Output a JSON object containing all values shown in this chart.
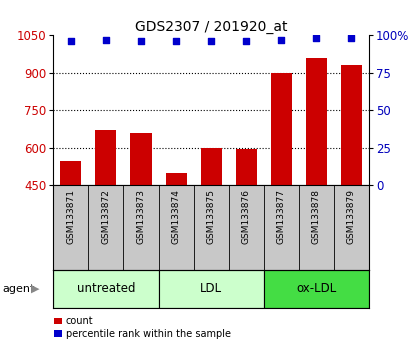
{
  "title": "GDS2307 / 201920_at",
  "samples": [
    "GSM133871",
    "GSM133872",
    "GSM133873",
    "GSM133874",
    "GSM133875",
    "GSM133876",
    "GSM133877",
    "GSM133878",
    "GSM133879"
  ],
  "counts": [
    545,
    670,
    660,
    500,
    600,
    595,
    900,
    960,
    930
  ],
  "percentiles": [
    96,
    97,
    96,
    96,
    96,
    96,
    97,
    98,
    98
  ],
  "ylim_left": [
    450,
    1050
  ],
  "ylim_right": [
    0,
    100
  ],
  "yticks_left": [
    1050,
    900,
    750,
    600,
    450
  ],
  "yticks_right": [
    100,
    75,
    50,
    25,
    0
  ],
  "groups": [
    {
      "label": "untreated",
      "indices": [
        0,
        1,
        2
      ],
      "color": "#CCFFCC"
    },
    {
      "label": "LDL",
      "indices": [
        3,
        4,
        5
      ],
      "color": "#CCFFCC"
    },
    {
      "label": "ox-LDL",
      "indices": [
        6,
        7,
        8
      ],
      "color": "#44DD44"
    }
  ],
  "bar_color": "#CC0000",
  "dot_color": "#0000CC",
  "bar_width": 0.6,
  "tick_label_color_left": "#CC0000",
  "tick_label_color_right": "#0000BB",
  "background_plot": "#FFFFFF",
  "background_sample_row": "#C8C8C8",
  "agent_label": "agent",
  "legend_count": "count",
  "legend_percentile": "percentile rank within the sample"
}
